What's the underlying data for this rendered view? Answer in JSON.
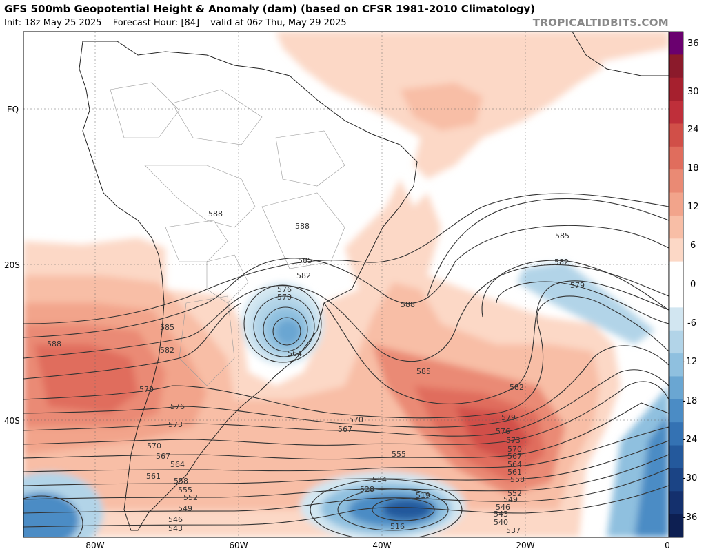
{
  "header": {
    "title": "GFS 500mb Geopotential Height & Anomaly (dam) (based on CFSR 1981-2010 Climatology)",
    "init": "Init: 18z May 25 2025",
    "forecast_hour": "Forecast Hour: [84]",
    "valid": "valid at 06z Thu, May 29 2025",
    "brand": "TROPICALTIDBITS.COM"
  },
  "axes": {
    "lat_labels": [
      "EQ",
      "20S",
      "40S"
    ],
    "lon_labels": [
      "80W",
      "60W",
      "40W",
      "20W",
      "0"
    ]
  },
  "colorbar": {
    "labels": [
      "36",
      "30",
      "24",
      "18",
      "12",
      "6",
      "0",
      "-6",
      "-12",
      "-18",
      "-24",
      "-30",
      "-36"
    ],
    "colors": [
      "#6a006f",
      "#8b1a2b",
      "#a6202e",
      "#bf2f3a",
      "#d14f48",
      "#e06d5d",
      "#ea8a74",
      "#f2a48b",
      "#f8bea6",
      "#fcd8c6",
      "#ffffff",
      "#ffffff",
      "#d2e6f1",
      "#b2d4e8",
      "#8fc0df",
      "#6aa6d2",
      "#4b8cc5",
      "#3472b3",
      "#24599c",
      "#1b4485",
      "#14306d",
      "#0d1f52"
    ]
  },
  "contour_labels": [
    "588",
    "588",
    "588",
    "585",
    "585",
    "582",
    "582",
    "579",
    "579",
    "576",
    "576",
    "570",
    "564",
    "558",
    "555",
    "552",
    "549",
    "546",
    "543",
    "573",
    "570",
    "567",
    "564",
    "561",
    "570",
    "567",
    "555",
    "534",
    "528",
    "519",
    "516",
    "588",
    "585",
    "582",
    "585",
    "582",
    "579",
    "576",
    "573",
    "570",
    "567",
    "564",
    "561",
    "558",
    "552",
    "549",
    "546",
    "543",
    "540",
    "537"
  ],
  "legend": {
    "positive_color": "#f2a48b",
    "negative_color": "#6aa6d2"
  }
}
